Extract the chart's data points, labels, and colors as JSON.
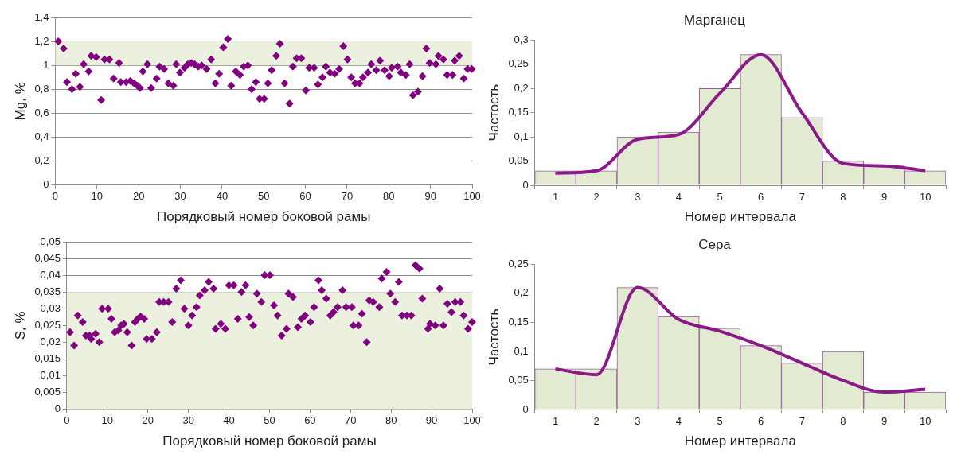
{
  "chart_data": [
    {
      "type": "scatter",
      "xlabel": "Порядковый номер боковой рамы",
      "ylabel": "Mg, %",
      "xlim": [
        0,
        100
      ],
      "xticks": [
        0,
        10,
        20,
        30,
        40,
        50,
        60,
        70,
        80,
        90,
        100
      ],
      "ylim": [
        0,
        1.4
      ],
      "yticks": [
        {
          "value": 0,
          "label": "0"
        },
        {
          "value": 0.2,
          "label": "0,2"
        },
        {
          "value": 0.4,
          "label": "0,4"
        },
        {
          "value": 0.6,
          "label": "0,6"
        },
        {
          "value": 0.8,
          "label": "0,8"
        },
        1,
        {
          "value": 1.2,
          "label": "1,2"
        },
        {
          "value": 1.4,
          "label": "1,4"
        }
      ],
      "grid": "y",
      "marker": "diamond",
      "bands": [
        {
          "axis": "y",
          "from": 1,
          "to": 1.2,
          "color": "#ebf1de"
        }
      ],
      "series": [
        {
          "color": "#800080",
          "x": [
            0.7,
            2.0,
            2.8,
            4.0,
            4.9,
            5.9,
            6.8,
            8.0,
            8.6,
            9.8,
            11.0,
            11.8,
            13.0,
            14.0,
            15.3,
            15.7,
            17.0,
            18.0,
            18.9,
            19.7,
            20.3,
            21.0,
            22.1,
            23.0,
            24.3,
            25.0,
            26.1,
            27.1,
            28.3,
            29.0,
            29.9,
            31.0,
            31.8,
            32.6,
            33.4,
            34.3,
            35.1,
            36.3,
            37.4,
            38.4,
            39.3,
            40.3,
            41.4,
            42.2,
            43.3,
            44.3,
            45.2,
            46.2,
            47.1,
            48.1,
            49.0,
            50.1,
            51.0,
            51.9,
            53.0,
            53.9,
            55.0,
            56.2,
            57.0,
            57.9,
            59.0,
            60.1,
            60.9,
            62.1,
            63.0,
            64.1,
            64.9,
            65.9,
            67.0,
            68.1,
            69.1,
            70.1,
            71.0,
            71.9,
            73.0,
            73.8,
            75.0,
            75.8,
            77.0,
            77.9,
            79.0,
            80.1,
            80.7,
            82.1,
            82.9,
            84.1,
            85.0,
            85.8,
            87.0,
            88.1,
            89.0,
            89.8,
            91.3,
            91.9,
            93.1,
            94.0,
            95.3,
            95.8,
            96.9,
            98.0,
            98.9,
            99.9
          ],
          "values": [
            1.2,
            1.14,
            0.86,
            0.8,
            0.93,
            0.82,
            1.01,
            0.95,
            1.08,
            1.07,
            0.71,
            1.05,
            1.05,
            0.89,
            1.02,
            0.86,
            0.86,
            0.87,
            0.85,
            0.83,
            0.81,
            0.95,
            1.01,
            0.81,
            0.89,
            0.99,
            0.97,
            0.85,
            0.83,
            1.01,
            0.94,
            0.98,
            1.01,
            1.02,
            1.01,
            0.99,
            1.0,
            0.97,
            1.05,
            0.85,
            0.93,
            1.15,
            1.22,
            0.83,
            0.95,
            0.92,
            0.99,
            1.0,
            0.8,
            0.86,
            0.72,
            0.72,
            0.85,
            0.96,
            1.08,
            1.18,
            0.85,
            0.68,
            0.99,
            1.06,
            1.06,
            0.79,
            0.98,
            0.98,
            0.84,
            0.9,
            0.99,
            0.94,
            0.93,
            0.97,
            1.16,
            1.05,
            0.9,
            0.85,
            0.85,
            0.9,
            0.94,
            1.01,
            0.96,
            1.04,
            0.96,
            0.91,
            0.98,
            0.99,
            0.94,
            0.92,
            1.01,
            0.75,
            0.78,
            0.91,
            1.14,
            1.02,
            1.01,
            1.08,
            1.05,
            0.92,
            0.92,
            1.04,
            1.08,
            0.89,
            0.97,
            0.97
          ]
        }
      ]
    },
    {
      "type": "bar",
      "title": "Марганец",
      "xlabel": "Номер интервала",
      "ylabel": "Частость",
      "categories": [
        "1",
        "2",
        "3",
        "4",
        "5",
        "6",
        "7",
        "8",
        "9",
        "10"
      ],
      "ylim": [
        0,
        0.3
      ],
      "yticks": [
        {
          "value": 0,
          "label": "0"
        },
        {
          "value": 0.05,
          "label": "0,05"
        },
        {
          "value": 0.1,
          "label": "0,1"
        },
        {
          "value": 0.15,
          "label": "0,15"
        },
        {
          "value": 0.2,
          "label": "0,2"
        },
        {
          "value": 0.25,
          "label": "0,25"
        },
        {
          "value": 0.3,
          "label": "0,3"
        }
      ],
      "series": [
        {
          "color": "#e2ebd2",
          "values": [
            0.03,
            0.03,
            0.1,
            0.11,
            0.2,
            0.27,
            0.14,
            0.05,
            0.04,
            0.03
          ]
        },
        {
          "type": "line",
          "color": "#8b1a89",
          "values": [
            0.025,
            0.03,
            0.095,
            0.105,
            0.19,
            0.27,
            0.15,
            0.045,
            0.04,
            0.03
          ]
        }
      ]
    },
    {
      "type": "scatter",
      "xlabel": "Порядковый номер боковой рамы",
      "ylabel": "S, %",
      "xlim": [
        0,
        100
      ],
      "xticks": [
        0,
        10,
        20,
        30,
        40,
        50,
        60,
        70,
        80,
        90,
        100
      ],
      "ylim": [
        0,
        0.05
      ],
      "yticks": [
        {
          "value": 0,
          "label": "0"
        },
        {
          "value": 0.005,
          "label": "0,005"
        },
        {
          "value": 0.01,
          "label": "0,01"
        },
        {
          "value": 0.015,
          "label": "0,015"
        },
        {
          "value": 0.02,
          "label": "0,02"
        },
        {
          "value": 0.025,
          "label": "0,025"
        },
        {
          "value": 0.03,
          "label": "0,03"
        },
        {
          "value": 0.035,
          "label": "0,035"
        },
        {
          "value": 0.04,
          "label": "0,04"
        },
        {
          "value": 0.045,
          "label": "0,045"
        },
        {
          "value": 0.05,
          "label": "0,05"
        }
      ],
      "grid": "y",
      "marker": "diamond",
      "bands": [
        {
          "axis": "y",
          "from": 0,
          "to": 0.035,
          "color": "#ebf1de"
        }
      ],
      "series": [
        {
          "color": "#800080",
          "x": [
            0.8,
            1.8,
            2.7,
            3.9,
            4.7,
            5.6,
            6.0,
            7.1,
            8.0,
            8.7,
            10.2,
            11.0,
            11.8,
            12.7,
            13.4,
            14.1,
            14.9,
            16.0,
            16.8,
            17.5,
            18.2,
            19.1,
            19.7,
            21.0,
            22.2,
            22.8,
            23.9,
            25.1,
            26.0,
            27.0,
            28.1,
            29.0,
            30.0,
            30.9,
            32.0,
            32.8,
            34.0,
            35.0,
            36.2,
            36.7,
            38.0,
            39.1,
            40.0,
            41.2,
            42.2,
            43.1,
            44.1,
            45.0,
            46.0,
            46.9,
            48.0,
            48.8,
            50.1,
            51.1,
            52.0,
            53.0,
            54.2,
            54.7,
            55.8,
            57.0,
            57.9,
            58.8,
            60.1,
            61.0,
            62.1,
            62.9,
            64.0,
            65.0,
            65.8,
            66.8,
            68.0,
            68.9,
            70.3,
            70.7,
            72.0,
            72.8,
            74.0,
            74.6,
            75.6,
            77.1,
            77.7,
            78.9,
            79.8,
            81.0,
            81.9,
            82.7,
            83.9,
            85.0,
            86.0,
            87.0,
            87.7,
            89.1,
            89.6,
            90.9,
            92.0,
            92.9,
            93.9,
            94.9,
            95.8,
            97.1,
            97.9,
            99.0,
            100.0
          ],
          "values": [
            0.023,
            0.019,
            0.028,
            0.026,
            0.022,
            0.022,
            0.021,
            0.0225,
            0.02,
            0.03,
            0.03,
            0.027,
            0.023,
            0.0235,
            0.025,
            0.0255,
            0.023,
            0.019,
            0.026,
            0.027,
            0.0277,
            0.027,
            0.021,
            0.021,
            0.023,
            0.032,
            0.032,
            0.032,
            0.026,
            0.036,
            0.0385,
            0.03,
            0.025,
            0.028,
            0.0305,
            0.034,
            0.0355,
            0.038,
            0.036,
            0.024,
            0.0255,
            0.024,
            0.037,
            0.037,
            0.027,
            0.035,
            0.037,
            0.0275,
            0.025,
            0.0345,
            0.032,
            0.04,
            0.04,
            0.031,
            0.028,
            0.022,
            0.024,
            0.0345,
            0.0335,
            0.0245,
            0.027,
            0.028,
            0.026,
            0.0305,
            0.0385,
            0.0355,
            0.033,
            0.028,
            0.029,
            0.0305,
            0.0355,
            0.0305,
            0.0305,
            0.025,
            0.025,
            0.0285,
            0.02,
            0.0325,
            0.032,
            0.0305,
            0.039,
            0.041,
            0.0345,
            0.032,
            0.038,
            0.028,
            0.028,
            0.028,
            0.043,
            0.042,
            0.033,
            0.024,
            0.0255,
            0.025,
            0.036,
            0.025,
            0.0315,
            0.029,
            0.032,
            0.032,
            0.028,
            0.024,
            0.026
          ]
        }
      ]
    },
    {
      "type": "bar",
      "title": "Сера",
      "xlabel": "Номер интервала",
      "ylabel": "Частость",
      "categories": [
        "1",
        "2",
        "3",
        "4",
        "5",
        "6",
        "7",
        "8",
        "9",
        "10"
      ],
      "ylim": [
        0,
        0.25
      ],
      "yticks": [
        {
          "value": 0,
          "label": "0"
        },
        {
          "value": 0.05,
          "label": "0,05"
        },
        {
          "value": 0.1,
          "label": "0,1"
        },
        {
          "value": 0.15,
          "label": "0,15"
        },
        {
          "value": 0.2,
          "label": "0,2"
        },
        {
          "value": 0.25,
          "label": "0,25"
        }
      ],
      "series": [
        {
          "color": "#e2ebd2",
          "values": [
            0.07,
            0.07,
            0.21,
            0.16,
            0.14,
            0.11,
            0.08,
            0.1,
            0.03,
            0.03
          ]
        },
        {
          "type": "line",
          "color": "#8b1a89",
          "values": [
            0.07,
            0.06,
            0.21,
            0.155,
            0.135,
            0.11,
            0.08,
            0.05,
            0.03,
            0.035
          ]
        }
      ]
    }
  ]
}
